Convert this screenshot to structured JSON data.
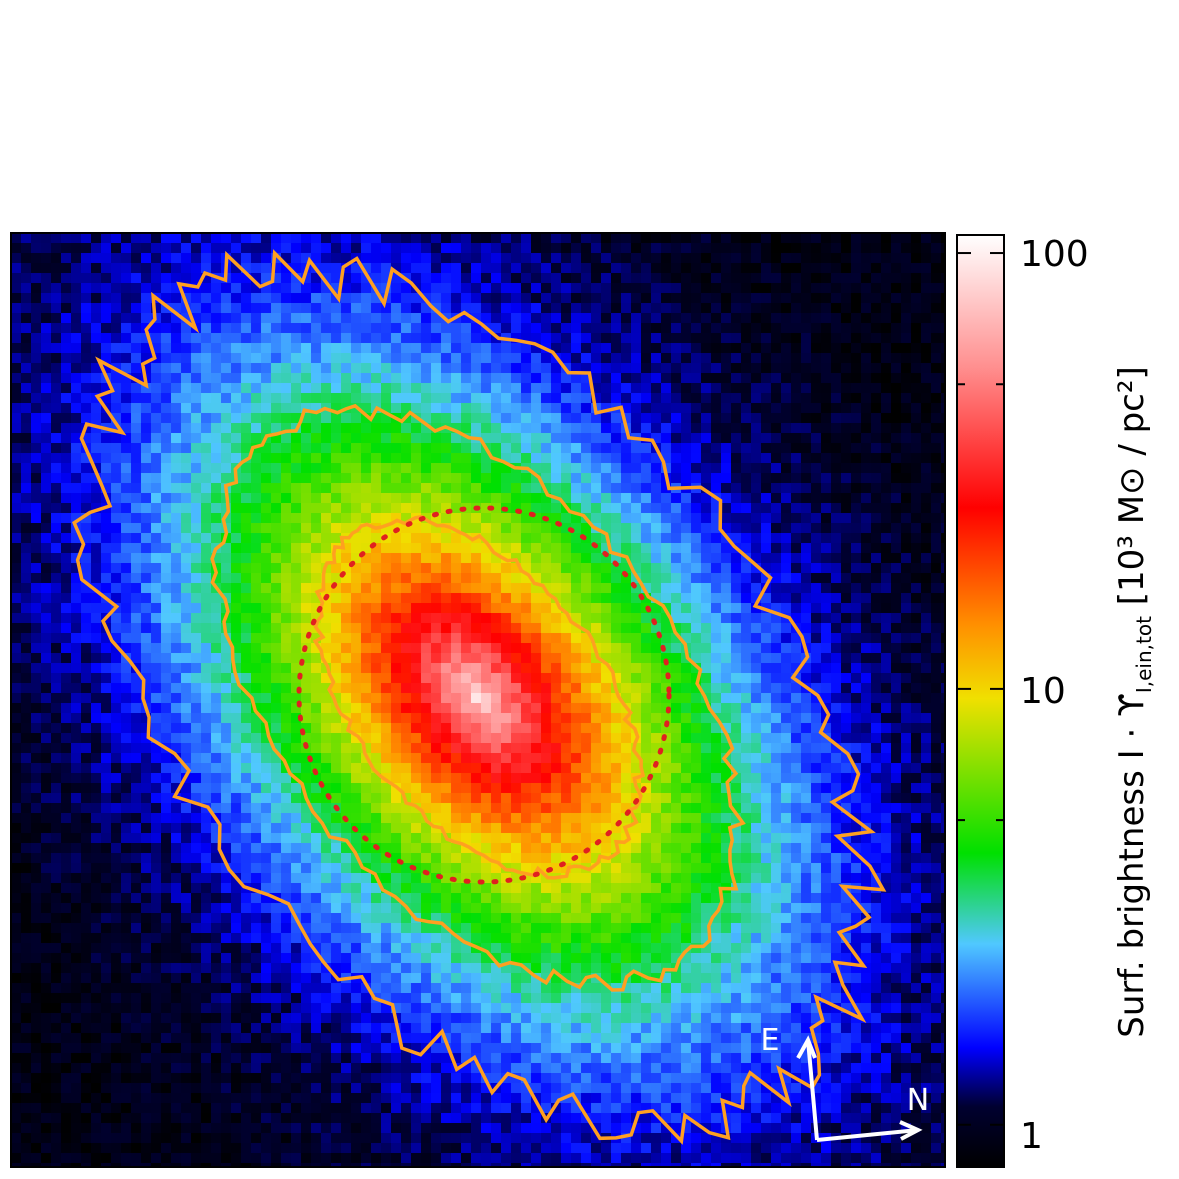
{
  "chart_data": {
    "type": "heatmap",
    "title": "",
    "colorbar": {
      "label": "Surf. brightness I · ϒ",
      "label_subscript": "I,ein,tot",
      "label_units": " [10³ M⊙ / pc²]",
      "scale": "log",
      "range": [
        0.8,
        110
      ],
      "major_ticks": [
        {
          "value": 1,
          "label": "1"
        },
        {
          "value": 10,
          "label": "10"
        },
        {
          "value": 100,
          "label": "100"
        }
      ],
      "colormap": [
        {
          "value": 0.8,
          "color": "#000000"
        },
        {
          "value": 1.1,
          "color": "#000030"
        },
        {
          "value": 1.5,
          "color": "#0000ff"
        },
        {
          "value": 2.6,
          "color": "#50c8ff"
        },
        {
          "value": 4.2,
          "color": "#00e000"
        },
        {
          "value": 9.5,
          "color": "#f0e000"
        },
        {
          "value": 14,
          "color": "#ff9000"
        },
        {
          "value": 26,
          "color": "#ff0000"
        },
        {
          "value": 55,
          "color": "#ff9090"
        },
        {
          "value": 110,
          "color": "#ffffff"
        }
      ]
    },
    "galaxy_model": {
      "peak_brightness": 100,
      "background_level": 0.9,
      "major_axis_angle_deg": 51,
      "axis_ratio": 0.6
    },
    "contour_levels": [
      1.6,
      3.5,
      9.0
    ],
    "contour_color": "#ffa020",
    "effective_radius_ellipse": {
      "style": "dotted",
      "color": "#e02020"
    },
    "compass": {
      "east": "E",
      "north": "N",
      "color": "#ffffff"
    }
  }
}
